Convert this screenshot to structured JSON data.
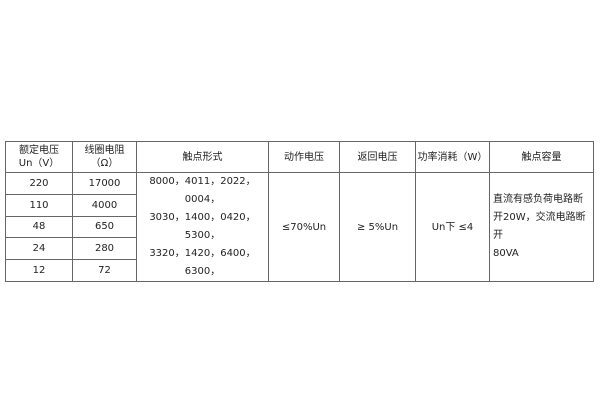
{
  "table": {
    "headers": [
      "额定电压",
      "Un（V）",
      "线圈电阻",
      "（Ω）",
      "触点形式",
      "动作电压",
      "返回电压",
      "功率消耗（W）",
      "触点容量"
    ],
    "rows": [
      {
        "voltage": "220",
        "resistance": "17000"
      },
      {
        "voltage": "110",
        "resistance": "4000"
      },
      {
        "voltage": "48",
        "resistance": "650"
      },
      {
        "voltage": "24",
        "resistance": "280"
      },
      {
        "voltage": "12",
        "resistance": "72"
      }
    ],
    "contact_forms": [
      "8000，4011，2022，0004，",
      "3030，1400，0420，5300，",
      "3320，1420，6400，6300，"
    ],
    "operate_voltage": "≤70%Un",
    "release_voltage": "≥ 5%Un",
    "power": "Un下 ≤4",
    "capacity": [
      "直流有感负荷电路断",
      "开20W，交流电路断开",
      "80VA"
    ]
  }
}
